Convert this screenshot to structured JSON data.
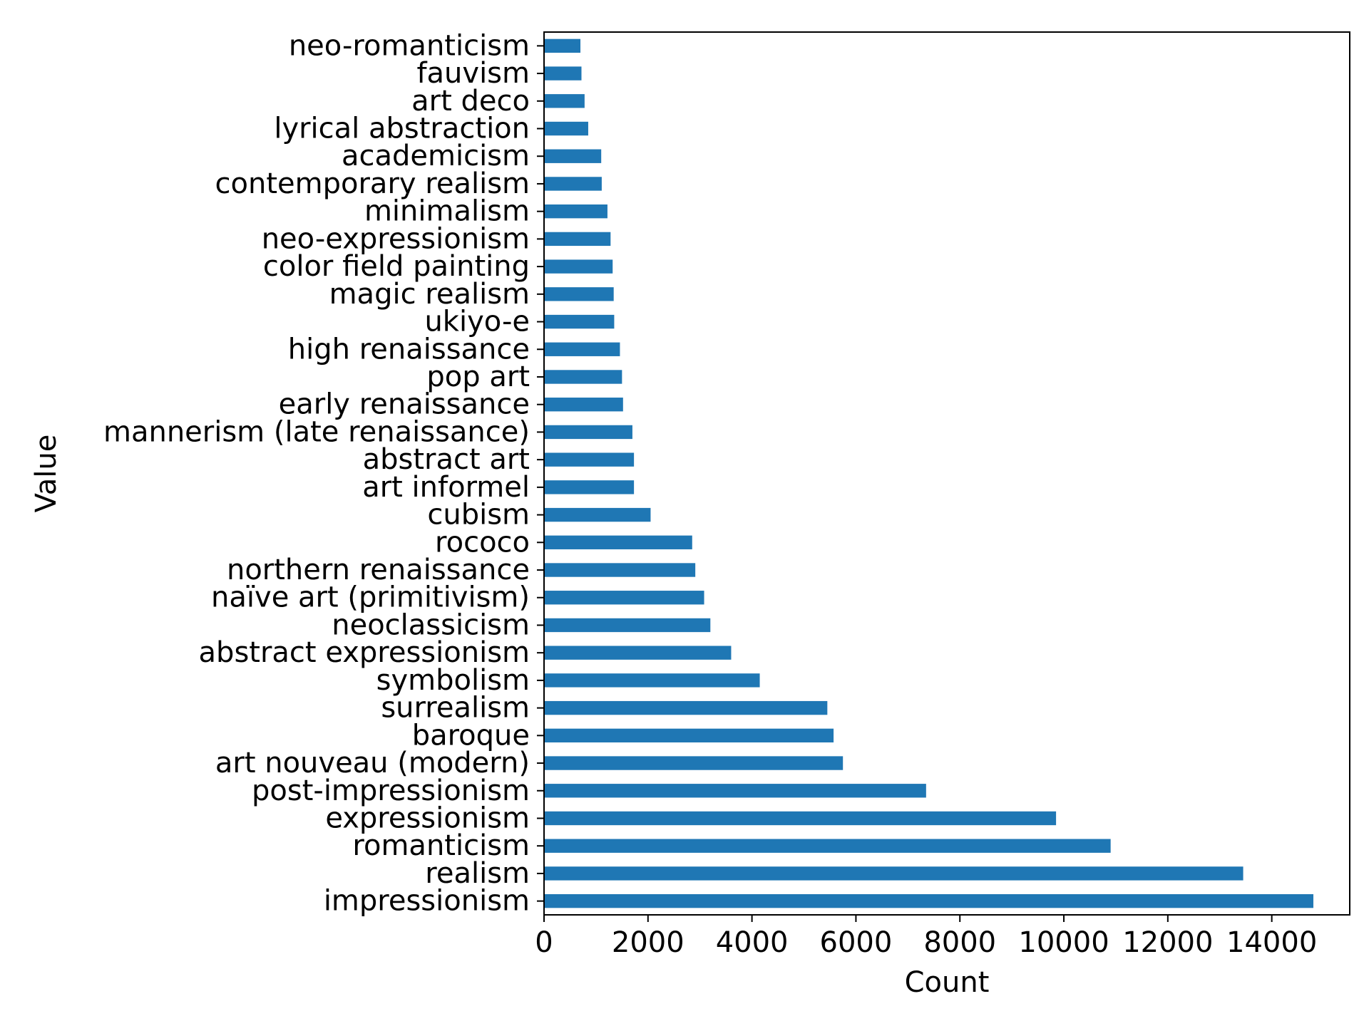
{
  "chart_data": {
    "type": "bar",
    "orientation": "horizontal",
    "title": "",
    "xlabel": "Count",
    "ylabel": "Value",
    "xlim": [
      0,
      15500
    ],
    "xticks": [
      0,
      2000,
      4000,
      6000,
      8000,
      10000,
      12000,
      14000
    ],
    "xtick_labels": [
      "0",
      "2000",
      "4000",
      "6000",
      "8000",
      "10000",
      "12000",
      "14000"
    ],
    "grid": false,
    "legend": "none",
    "bar_color": "#1f77b4",
    "categories": [
      "impressionism",
      "realism",
      "romanticism",
      "expressionism",
      "post-impressionism",
      "art nouveau (modern)",
      "baroque",
      "surrealism",
      "symbolism",
      "abstract expressionism",
      "neoclassicism",
      "naïve art (primitivism)",
      "northern renaissance",
      "rococo",
      "cubism",
      "art informel",
      "abstract art",
      "mannerism (late renaissance)",
      "early renaissance",
      "pop art",
      "high renaissance",
      "ukiyo-e",
      "magic realism",
      "color field painting",
      "neo-expressionism",
      "minimalism",
      "contemporary realism",
      "academicism",
      "lyrical abstraction",
      "art deco",
      "fauvism",
      "neo-romanticism"
    ],
    "values": [
      14800,
      13450,
      10900,
      9850,
      7350,
      5750,
      5570,
      5450,
      4150,
      3600,
      3200,
      3080,
      2910,
      2850,
      2050,
      1730,
      1730,
      1700,
      1520,
      1500,
      1460,
      1350,
      1340,
      1320,
      1280,
      1220,
      1110,
      1100,
      850,
      780,
      720,
      700
    ]
  }
}
